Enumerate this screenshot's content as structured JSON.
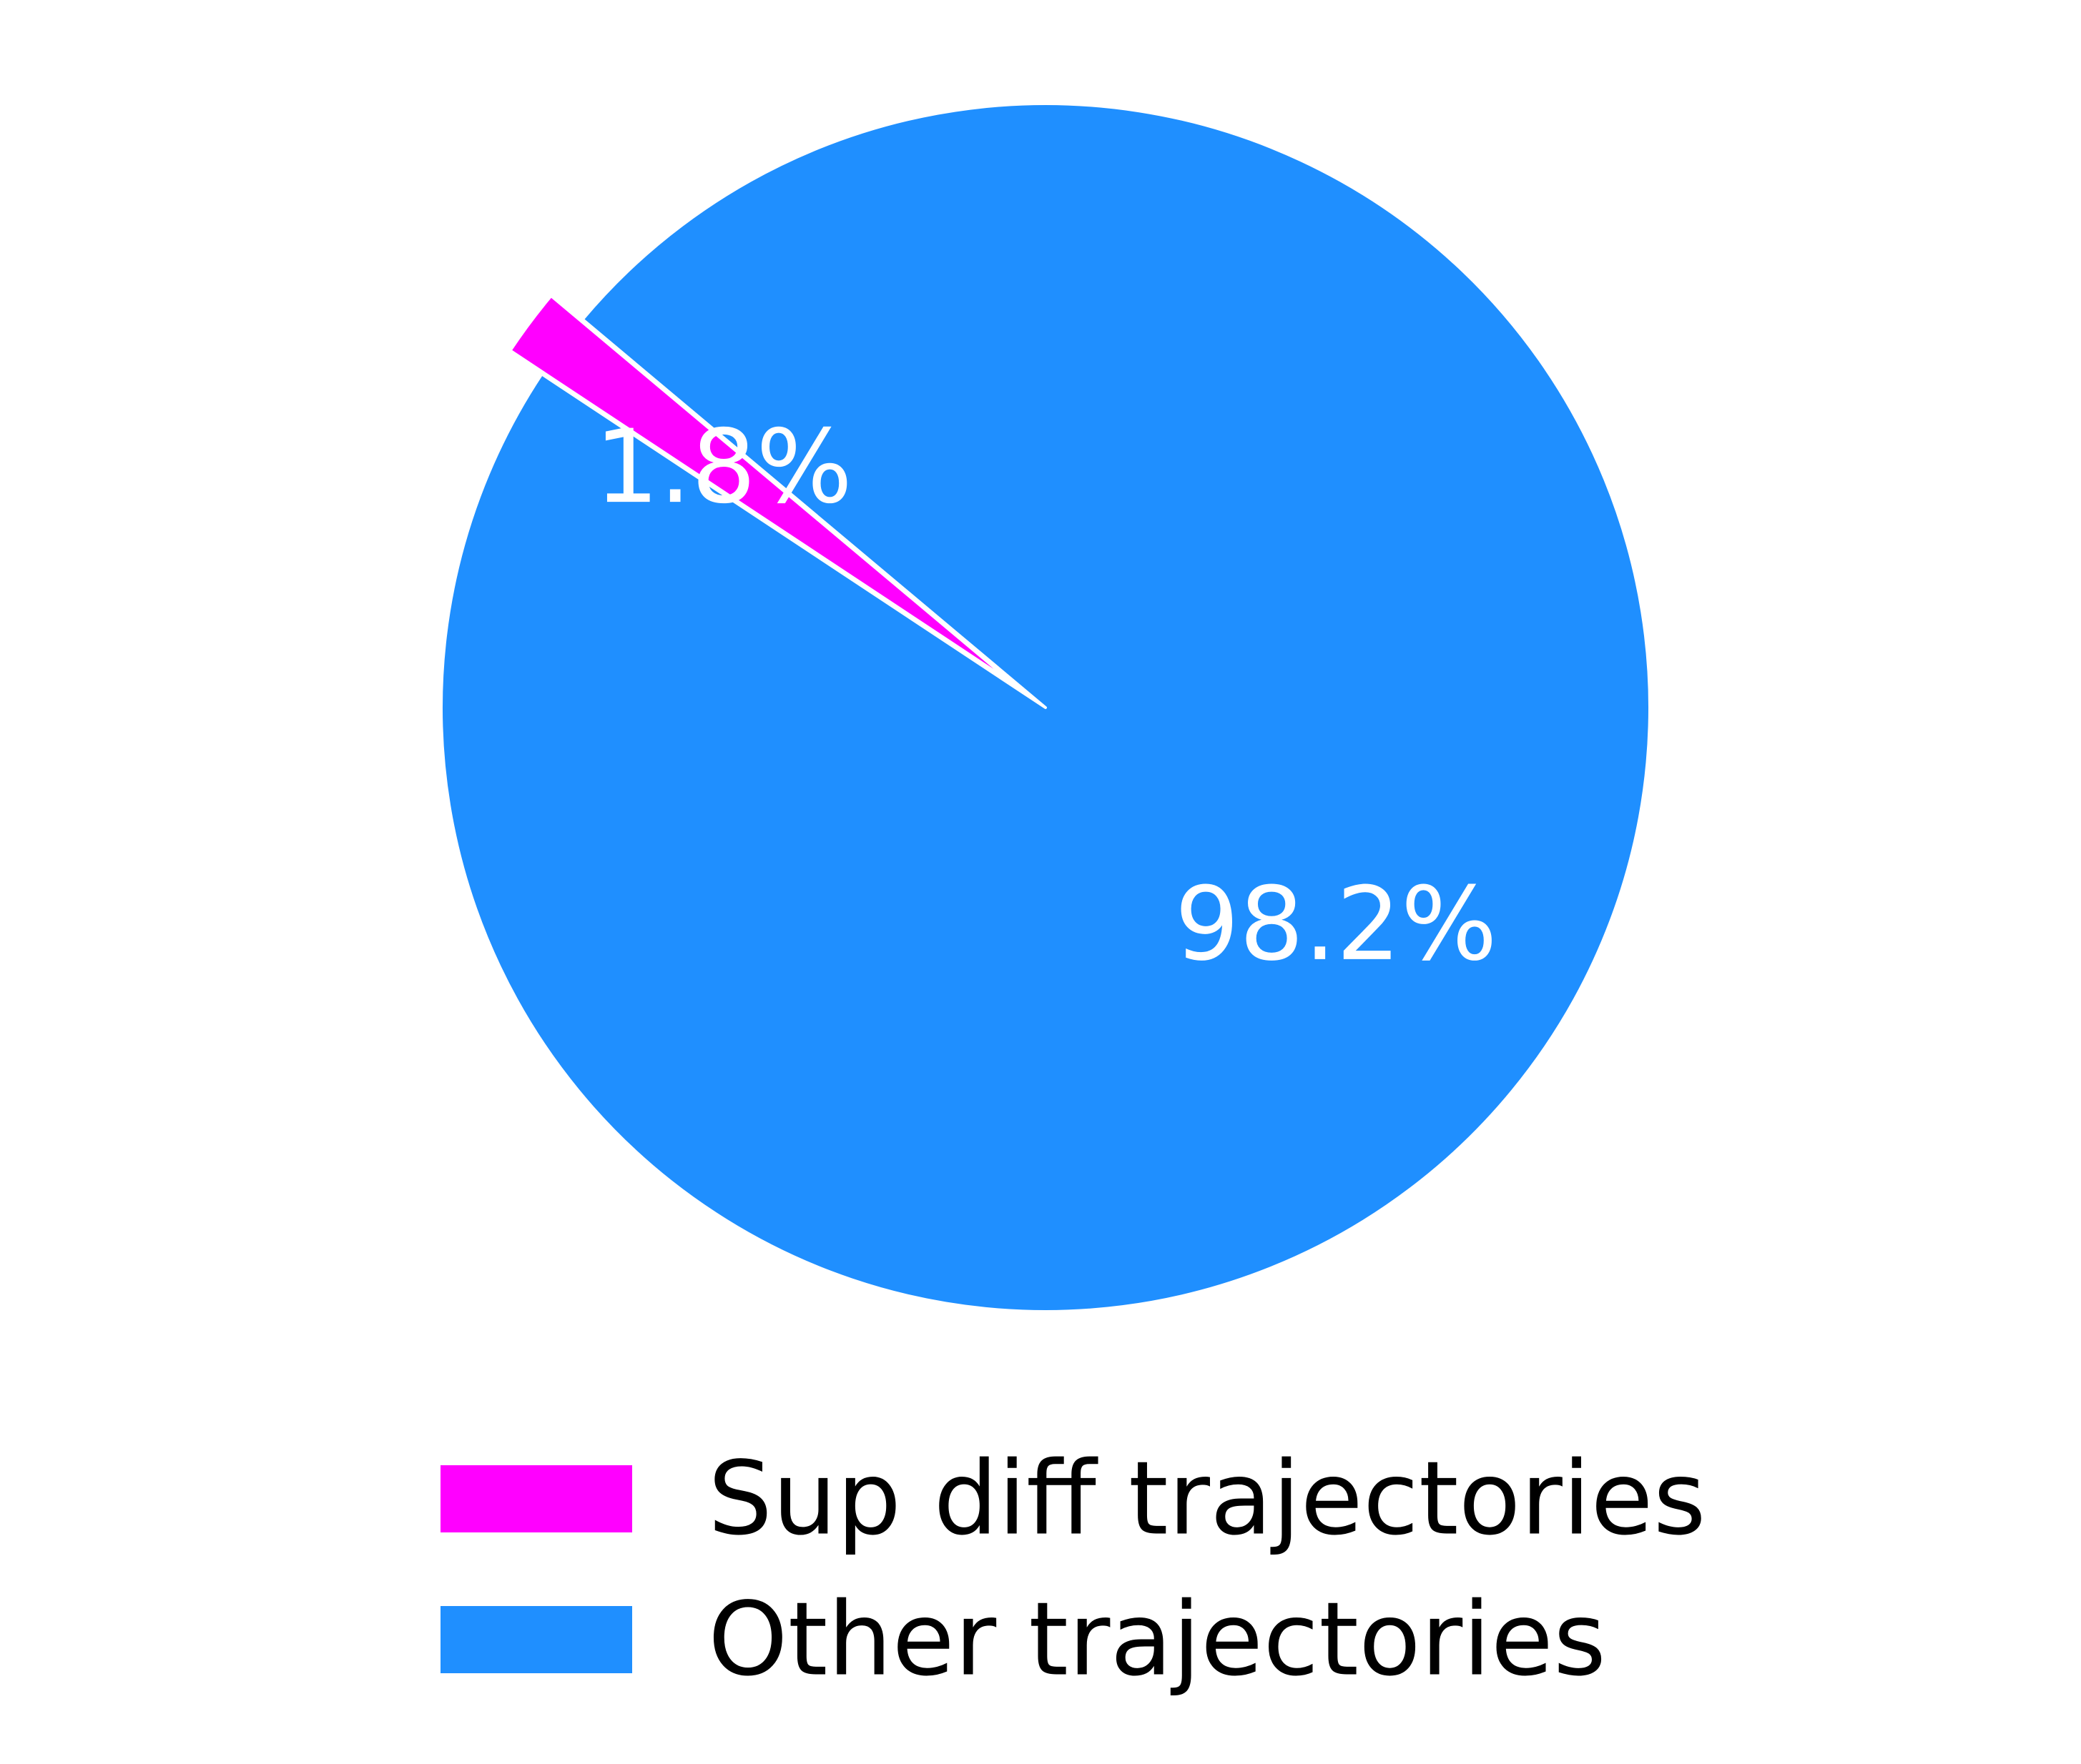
{
  "chart_data": {
    "type": "pie",
    "slices": [
      {
        "label": "Sup diff trajectories",
        "value": 1.8,
        "display": "1.8%",
        "color": "#ff00ff",
        "exploded": true
      },
      {
        "label": "Other trajectories",
        "value": 98.2,
        "display": "98.2%",
        "color": "#1f8fff",
        "exploded": false
      }
    ],
    "legend": {
      "placement": "bottom-center",
      "entries": [
        "Sup diff trajectories",
        "Other trajectories"
      ]
    }
  }
}
